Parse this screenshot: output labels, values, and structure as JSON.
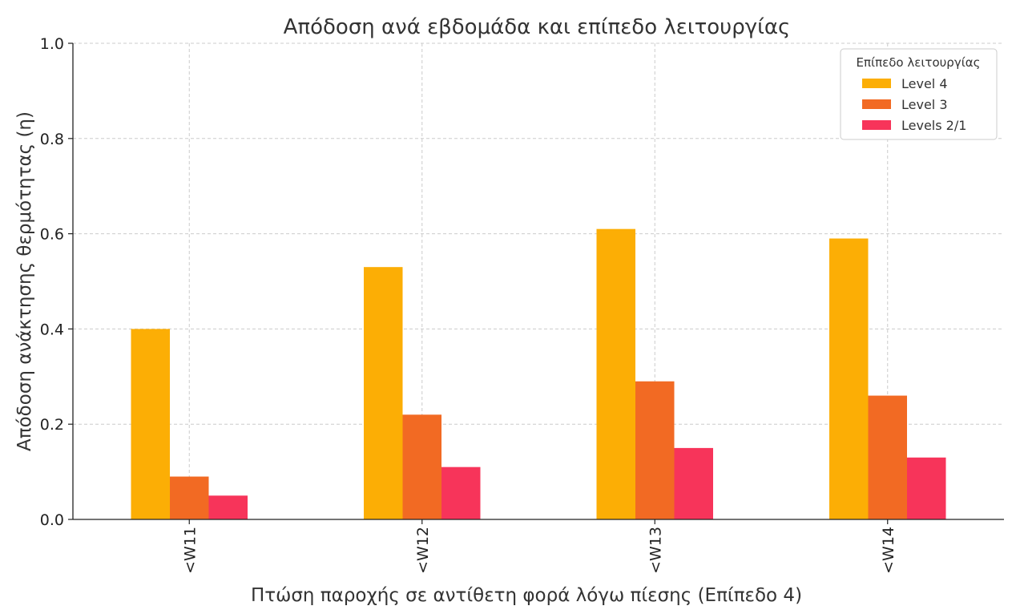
{
  "chart_data": {
    "type": "bar",
    "title": "Απόδοση ανά εβδομάδα και επίπεδο λειτουργίας",
    "xlabel": "Πτώση παροχής σε αντίθετη φορά λόγω πίεσης (Επίπεδο 4)",
    "ylabel": "Απόδοση ανάκτησης θερμότητας (η)",
    "categories": [
      "KW11",
      "KW12",
      "KW13",
      "KW14"
    ],
    "category_labels_visible": [
      "<W11",
      "<W12",
      "<W13",
      "<W14"
    ],
    "ylim": [
      0,
      1.0
    ],
    "yticks": [
      "0.0",
      "0.2",
      "0.4",
      "0.6",
      "0.8",
      "1.0"
    ],
    "grid": true,
    "legend": {
      "title": "Επίπεδο λειτουργίας",
      "position": "top-right"
    },
    "series": [
      {
        "name": "Level 4",
        "color": "#FCAE05",
        "values": [
          0.4,
          0.53,
          0.61,
          0.59
        ]
      },
      {
        "name": "Level 3",
        "color": "#F26A23",
        "values": [
          0.09,
          0.22,
          0.29,
          0.26
        ]
      },
      {
        "name": "Levels 2/1",
        "color": "#F7345A",
        "values": [
          0.05,
          0.11,
          0.15,
          0.13
        ]
      }
    ]
  }
}
